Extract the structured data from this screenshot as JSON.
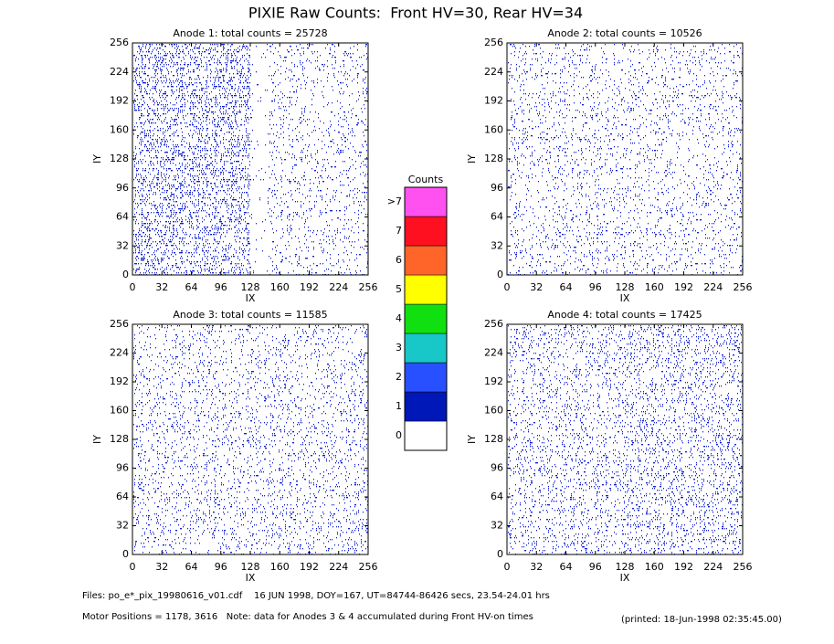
{
  "title": "PIXIE Raw Counts:  Front HV=30, Rear HV=34",
  "chart_data": [
    {
      "type": "heatmap",
      "title": "Anode 1: total counts = 25728",
      "xlabel": "IX",
      "ylabel": "IY",
      "xlim": [
        0,
        256
      ],
      "ylim": [
        0,
        256
      ],
      "xticks": [
        0,
        32,
        64,
        96,
        128,
        160,
        192,
        224,
        256
      ],
      "yticks": [
        0,
        32,
        64,
        96,
        128,
        160,
        192,
        224,
        256
      ]
    },
    {
      "type": "heatmap",
      "title": "Anode 2: total counts = 10526",
      "xlabel": "IX",
      "ylabel": "IY",
      "xlim": [
        0,
        256
      ],
      "ylim": [
        0,
        256
      ],
      "xticks": [
        0,
        32,
        64,
        96,
        128,
        160,
        192,
        224,
        256
      ],
      "yticks": [
        0,
        32,
        64,
        96,
        128,
        160,
        192,
        224,
        256
      ]
    },
    {
      "type": "heatmap",
      "title": "Anode 3: total counts = 11585",
      "xlabel": "IX",
      "ylabel": "IY",
      "xlim": [
        0,
        256
      ],
      "ylim": [
        0,
        256
      ],
      "xticks": [
        0,
        32,
        64,
        96,
        128,
        160,
        192,
        224,
        256
      ],
      "yticks": [
        0,
        32,
        64,
        96,
        128,
        160,
        192,
        224,
        256
      ]
    },
    {
      "type": "heatmap",
      "title": "Anode 4: total counts = 17425",
      "xlabel": "IX",
      "ylabel": "IY",
      "xlim": [
        0,
        256
      ],
      "ylim": [
        0,
        256
      ],
      "xticks": [
        0,
        32,
        64,
        96,
        128,
        160,
        192,
        224,
        256
      ],
      "yticks": [
        0,
        32,
        64,
        96,
        128,
        160,
        192,
        224,
        256
      ]
    }
  ],
  "colorbar": {
    "title": "Counts",
    "ticks": [
      0,
      1,
      2,
      3,
      4,
      5,
      6,
      7,
      {
        "value": 8,
        "label": ">7"
      }
    ],
    "colors": [
      "#ffffff",
      "#0018b8",
      "#2850ff",
      "#18c8c8",
      "#10e010",
      "#ffff00",
      "#ff6428",
      "#ff1020",
      "#ff50f0"
    ]
  },
  "footer": {
    "files": "Files: po_e*_pix_19980616_v01.cdf    16 JUN 1998, DOY=167, UT=84744-86426 secs, 23.54-24.01 hrs",
    "motor": "Motor Positions = 1178, 3616   Note: data for Anodes 3 & 4 accumulated during Front HV-on times",
    "printed": "(printed: 18-Jun-1998 02:35:45.00)"
  }
}
